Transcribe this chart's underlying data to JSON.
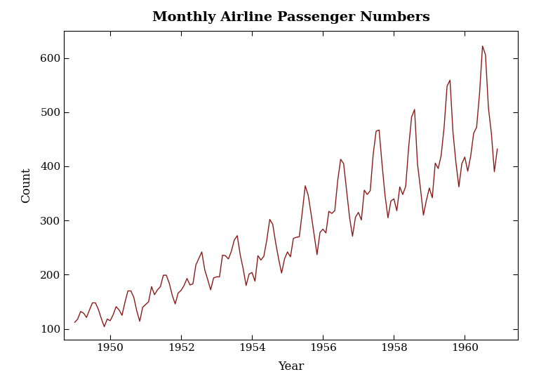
{
  "title": "Monthly Airline Passenger Numbers",
  "xlabel": "Year",
  "ylabel": "Count",
  "line_color": "#8B1A1A",
  "line_width": 1.0,
  "background_color": "#ffffff",
  "ylim": [
    80,
    650
  ],
  "xlim_start": 1948.7,
  "xlim_end": 1961.5,
  "yticks": [
    100,
    200,
    300,
    400,
    500,
    600
  ],
  "xticks": [
    1950,
    1952,
    1954,
    1956,
    1958,
    1960
  ],
  "values": [
    112,
    118,
    132,
    129,
    121,
    135,
    148,
    148,
    136,
    119,
    104,
    118,
    115,
    126,
    141,
    135,
    125,
    149,
    170,
    170,
    158,
    133,
    114,
    140,
    145,
    150,
    178,
    163,
    172,
    178,
    199,
    199,
    184,
    162,
    146,
    166,
    171,
    180,
    193,
    181,
    183,
    218,
    230,
    242,
    209,
    191,
    172,
    194,
    196,
    196,
    236,
    235,
    229,
    243,
    264,
    272,
    237,
    211,
    180,
    201,
    204,
    188,
    235,
    227,
    234,
    264,
    302,
    293,
    259,
    229,
    203,
    229,
    242,
    233,
    267,
    269,
    270,
    315,
    364,
    347,
    312,
    274,
    237,
    278,
    284,
    277,
    317,
    313,
    318,
    374,
    413,
    405,
    355,
    306,
    271,
    306,
    315,
    301,
    356,
    348,
    355,
    422,
    465,
    467,
    404,
    347,
    305,
    336,
    340,
    318,
    362,
    348,
    363,
    435,
    491,
    505,
    404,
    359,
    310,
    337,
    360,
    342,
    406,
    396,
    420,
    472,
    548,
    559,
    463,
    407,
    362,
    405,
    417,
    391,
    419,
    461,
    472,
    535,
    622,
    606,
    508,
    461,
    390,
    432
  ],
  "title_fontsize": 14,
  "label_fontsize": 12,
  "tick_fontsize": 11
}
